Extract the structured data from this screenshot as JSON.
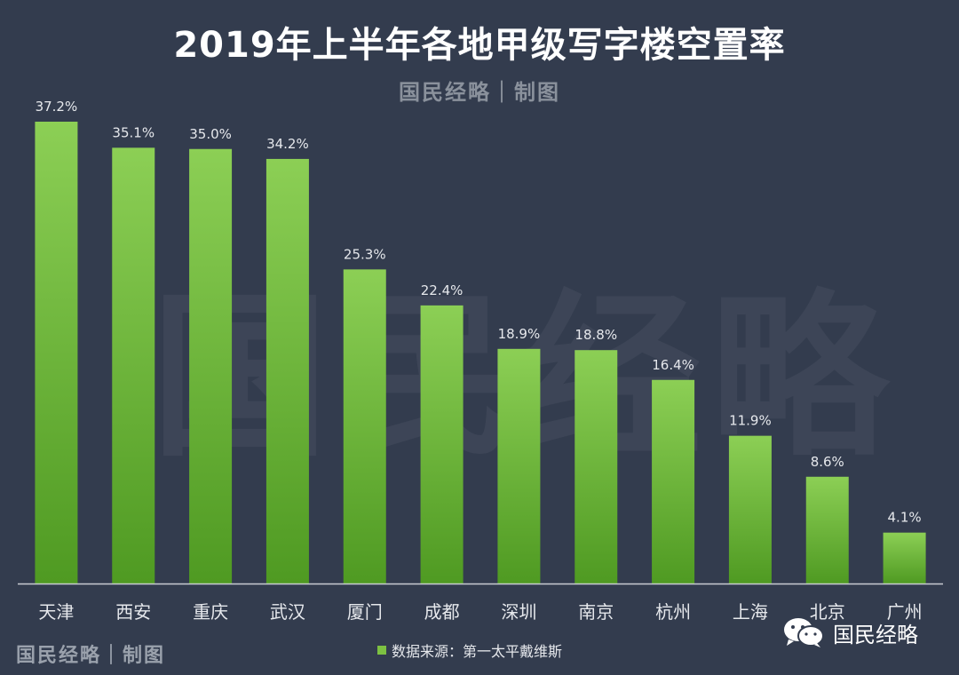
{
  "header": {
    "title": "2019年上半年各地甲级写字楼空置率",
    "subtitle": "国民经略｜制图"
  },
  "watermark": "国民经略",
  "footer": {
    "credit": "国民经略｜制图",
    "source": "数据来源：第一太平戴维斯",
    "brand": "国民经略",
    "brand_icon": "wechat-icon"
  },
  "colors": {
    "background": "#333c4e",
    "bar_top": "#8ccf55",
    "bar_bottom": "#4f9a22",
    "axis": "#c9ccd2",
    "label": "#e6e8ec"
  },
  "chart_data": {
    "type": "bar",
    "title": "2019年上半年各地甲级写字楼空置率",
    "categories": [
      "天津",
      "西安",
      "重庆",
      "武汉",
      "厦门",
      "成都",
      "深圳",
      "南京",
      "杭州",
      "上海",
      "北京",
      "广州"
    ],
    "values": [
      37.2,
      35.1,
      35.0,
      34.2,
      25.3,
      22.4,
      18.9,
      18.8,
      16.4,
      11.9,
      8.6,
      4.1
    ],
    "data_labels": [
      "37.2%",
      "35.1%",
      "35.0%",
      "34.2%",
      "25.3%",
      "22.4%",
      "18.9%",
      "18.8%",
      "16.4%",
      "11.9%",
      "8.6%",
      "4.1%"
    ],
    "unit": "%",
    "ylim": [
      0,
      37.2
    ],
    "grid": false,
    "legend": "bottom-center",
    "series": [
      {
        "name": "数据来源：第一太平戴维斯",
        "values": [
          37.2,
          35.1,
          35.0,
          34.2,
          25.3,
          22.4,
          18.9,
          18.8,
          16.4,
          11.9,
          8.6,
          4.1
        ]
      }
    ]
  }
}
